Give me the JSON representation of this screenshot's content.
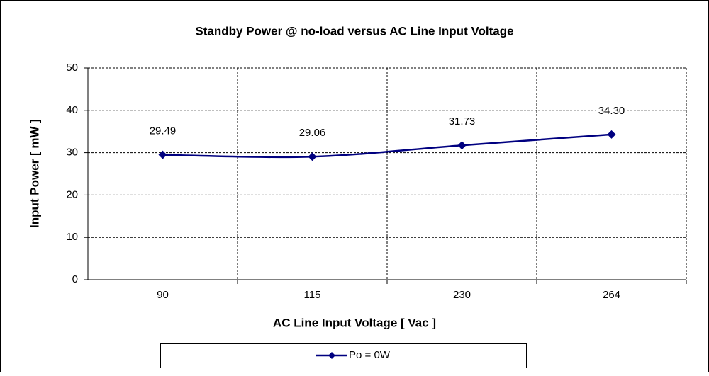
{
  "chart_data": {
    "type": "line",
    "title": "Standby Power @ no-load versus AC Line Input Voltage",
    "xlabel": "AC Line Input Voltage  [ Vac ]",
    "ylabel": "Input Power [ mW ]",
    "categories": [
      "90",
      "115",
      "230",
      "264"
    ],
    "series": [
      {
        "name": "Po = 0W",
        "color": "#000080",
        "values": [
          29.49,
          29.06,
          31.73,
          34.3
        ],
        "value_labels": [
          "29.49",
          "29.06",
          "31.73",
          "34.30"
        ]
      }
    ],
    "ylim": [
      0,
      50
    ],
    "yticks": [
      0,
      10,
      20,
      30,
      40,
      50
    ],
    "grid": true,
    "legend": "bottom"
  }
}
